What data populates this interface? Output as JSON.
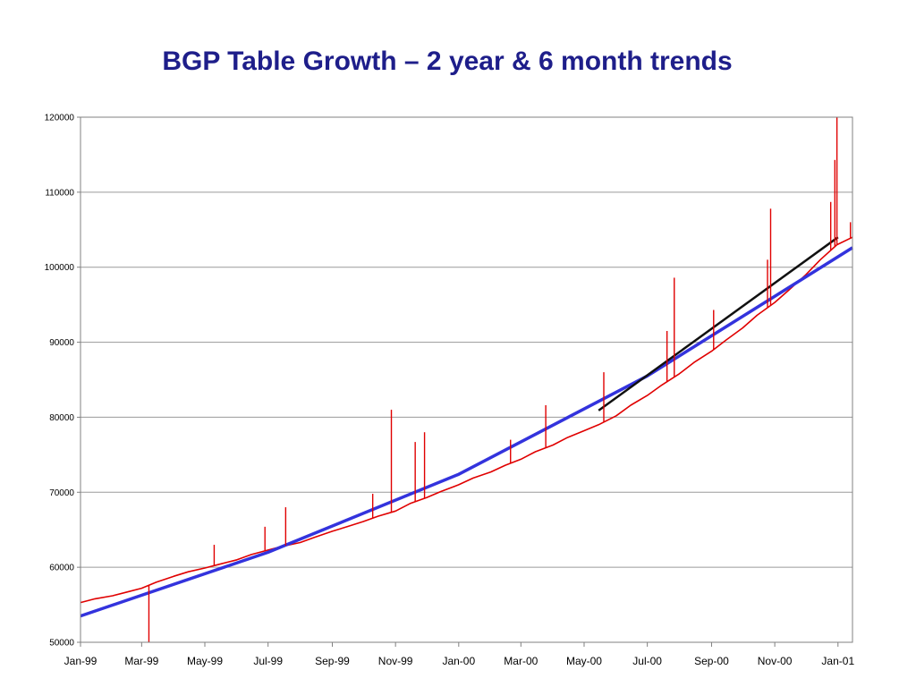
{
  "chart_data": {
    "type": "line",
    "title": "BGP Table Growth – 2 year & 6 month trends",
    "xlabel": "",
    "ylabel": "",
    "x_tick_labels": [
      "Jan-99",
      "Mar-99",
      "May-99",
      "Jul-99",
      "Sep-99",
      "Nov-99",
      "Jan-00",
      "Mar-00",
      "May-00",
      "Jul-00",
      "Sep-00",
      "Nov-00",
      "Jan-01"
    ],
    "x_tick_dates": [
      "1999-01-01",
      "1999-03-01",
      "1999-05-01",
      "1999-07-01",
      "1999-09-01",
      "1999-11-01",
      "2000-01-01",
      "2000-03-01",
      "2000-05-01",
      "2000-07-01",
      "2000-09-01",
      "2000-11-01",
      "2001-01-01"
    ],
    "xlim": [
      "1999-01-01",
      "2001-01-15"
    ],
    "y_tick_labels": [
      "50000",
      "60000",
      "70000",
      "80000",
      "90000",
      "100000",
      "110000",
      "120000"
    ],
    "ylim": [
      50000,
      120000
    ],
    "grid": "horizontal",
    "series": [
      {
        "color": "#e00000",
        "x": [
          "1999-01-01",
          "1999-01-15",
          "1999-02-01",
          "1999-02-15",
          "1999-03-01",
          "1999-03-15",
          "1999-04-01",
          "1999-04-15",
          "1999-05-01",
          "1999-05-15",
          "1999-06-01",
          "1999-06-15",
          "1999-07-01",
          "1999-07-15",
          "1999-08-01",
          "1999-08-15",
          "1999-09-01",
          "1999-09-15",
          "1999-10-01",
          "1999-10-15",
          "1999-11-01",
          "1999-11-15",
          "1999-12-01",
          "1999-12-15",
          "2000-01-01",
          "2000-01-15",
          "2000-02-01",
          "2000-02-15",
          "2000-03-01",
          "2000-03-15",
          "2000-04-01",
          "2000-04-15",
          "2000-05-01",
          "2000-05-15",
          "2000-06-01",
          "2000-06-15",
          "2000-07-01",
          "2000-07-15",
          "2000-08-01",
          "2000-08-15",
          "2000-09-01",
          "2000-09-15",
          "2000-10-01",
          "2000-10-15",
          "2000-11-01",
          "2000-11-15",
          "2000-12-01",
          "2000-12-15",
          "2000-12-31",
          "2001-01-15"
        ],
        "y": [
          55300,
          55800,
          56200,
          56700,
          57200,
          58000,
          58800,
          59400,
          59900,
          60400,
          61000,
          61700,
          62300,
          62800,
          63300,
          64000,
          64800,
          65400,
          66100,
          66800,
          67500,
          68500,
          69300,
          70100,
          71000,
          71900,
          72700,
          73600,
          74400,
          75400,
          76300,
          77300,
          78200,
          79000,
          80200,
          81600,
          82900,
          84300,
          85800,
          87300,
          88800,
          90300,
          91900,
          93600,
          95300,
          97000,
          99000,
          101000,
          103000,
          104000
        ]
      },
      {
        "color": "#3333dd",
        "x": [
          "1999-01-01",
          "1999-07-01",
          "2000-01-01",
          "2000-07-01",
          "2001-01-15"
        ],
        "y": [
          53500,
          62000,
          72400,
          85500,
          102600
        ]
      },
      {
        "color": "#111111",
        "x": [
          "2000-05-15",
          "2001-01-01"
        ],
        "y": [
          80900,
          104000
        ]
      }
    ],
    "spikes": [
      {
        "x": "1999-03-08",
        "y": 50000
      },
      {
        "x": "1999-05-10",
        "y": 63000
      },
      {
        "x": "1999-06-28",
        "y": 65400
      },
      {
        "x": "1999-07-18",
        "y": 68000
      },
      {
        "x": "1999-10-10",
        "y": 69800
      },
      {
        "x": "1999-10-28",
        "y": 81000
      },
      {
        "x": "1999-11-20",
        "y": 76700
      },
      {
        "x": "1999-11-29",
        "y": 78000
      },
      {
        "x": "2000-02-20",
        "y": 77000
      },
      {
        "x": "2000-03-25",
        "y": 81600
      },
      {
        "x": "2000-05-20",
        "y": 86000
      },
      {
        "x": "2000-07-20",
        "y": 91500
      },
      {
        "x": "2000-07-27",
        "y": 98600
      },
      {
        "x": "2000-09-03",
        "y": 94300
      },
      {
        "x": "2000-10-25",
        "y": 101000
      },
      {
        "x": "2000-10-28",
        "y": 107800
      },
      {
        "x": "2000-12-25",
        "y": 108700
      },
      {
        "x": "2000-12-29",
        "y": 114300
      },
      {
        "x": "2000-12-31",
        "y": 120000
      },
      {
        "x": "2001-01-13",
        "y": 106000
      }
    ]
  }
}
